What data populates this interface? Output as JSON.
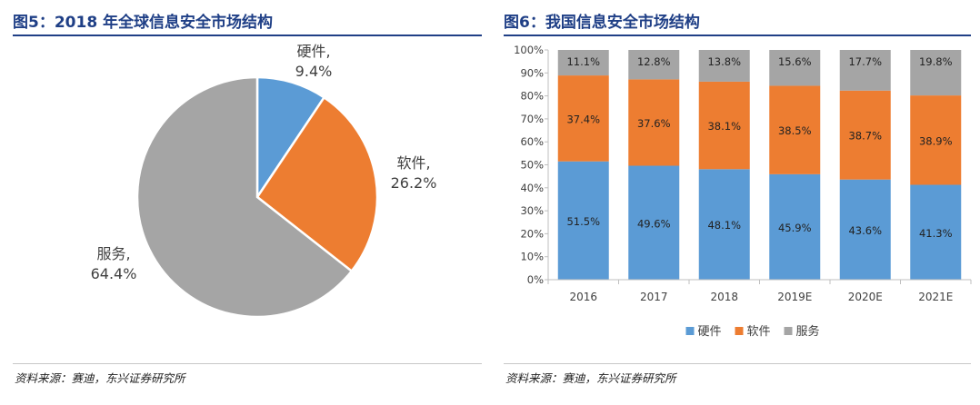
{
  "left": {
    "title": "图5：2018 年全球信息安全市场结构",
    "source": "资料来源：赛迪，东兴证券研究所"
  },
  "right": {
    "title": "图6：我国信息安全市场结构",
    "source": "资料来源：赛迪，东兴证券研究所"
  },
  "chart_data": [
    {
      "type": "pie",
      "title": "",
      "slices": [
        {
          "name": "硬件",
          "value": 9.4,
          "label": "9.4%",
          "color": "#5b9bd5"
        },
        {
          "name": "软件",
          "value": 26.2,
          "label": "26.2%",
          "color": "#ed7d31"
        },
        {
          "name": "服务",
          "value": 64.4,
          "label": "64.4%",
          "color": "#a5a5a5"
        }
      ]
    },
    {
      "type": "bar",
      "stacked": true,
      "title": "",
      "categories": [
        "2016",
        "2017",
        "2018",
        "2019E",
        "2020E",
        "2021E"
      ],
      "series": [
        {
          "name": "硬件",
          "color": "#5b9bd5",
          "values": [
            51.5,
            49.6,
            48.1,
            45.9,
            43.6,
            41.3
          ],
          "labels": [
            "51.5%",
            "49.6%",
            "48.1%",
            "45.9%",
            "43.6%",
            "41.3%"
          ]
        },
        {
          "name": "软件",
          "color": "#ed7d31",
          "values": [
            37.4,
            37.6,
            38.1,
            38.5,
            38.7,
            38.9
          ],
          "labels": [
            "37.4%",
            "37.6%",
            "38.1%",
            "38.5%",
            "38.7%",
            "38.9%"
          ]
        },
        {
          "name": "服务",
          "color": "#a5a5a5",
          "values": [
            11.1,
            12.8,
            13.8,
            15.6,
            17.7,
            19.8
          ],
          "labels": [
            "11.1%",
            "12.8%",
            "13.8%",
            "15.6%",
            "17.7%",
            "19.8%"
          ]
        }
      ],
      "ylim": [
        0,
        100
      ],
      "yticks": [
        "0%",
        "10%",
        "20%",
        "30%",
        "40%",
        "50%",
        "60%",
        "70%",
        "80%",
        "90%",
        "100%"
      ],
      "legend": "bottom",
      "grid": false
    }
  ]
}
